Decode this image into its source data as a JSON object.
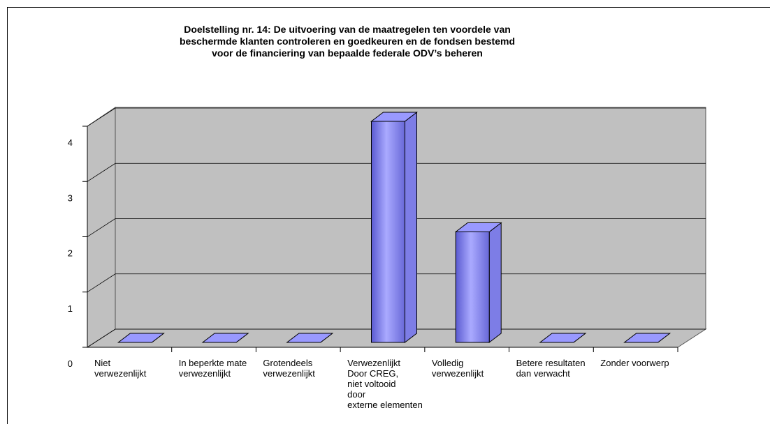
{
  "chart_data": {
    "type": "bar3d",
    "title": [
      "Doelstelling nr. 14: De uitvoering van de maatregelen ten voordele van",
      "beschermde klanten controleren en goedkeuren en de fondsen bestemd",
      "voor de financiering van bepaalde federale ODV’s beheren"
    ],
    "categories": [
      "Niet\nverwezenlijkt",
      "In beperkte mate\nverwezenlijkt",
      "Grotendeels\nverwezenlijkt",
      "Verwezenlijkt\nDoor CREG,\nniet voltooid\ndoor\nexterne elementen",
      "Volledig\nverwezenlijkt",
      "Betere resultaten\ndan verwacht",
      "Zonder voorwerp"
    ],
    "values": [
      0,
      0,
      0,
      4,
      2,
      0,
      0
    ],
    "color": "#9999ff",
    "ylim": [
      0,
      4
    ],
    "yticks": [
      0,
      1,
      2,
      3,
      4
    ],
    "grid": true
  }
}
